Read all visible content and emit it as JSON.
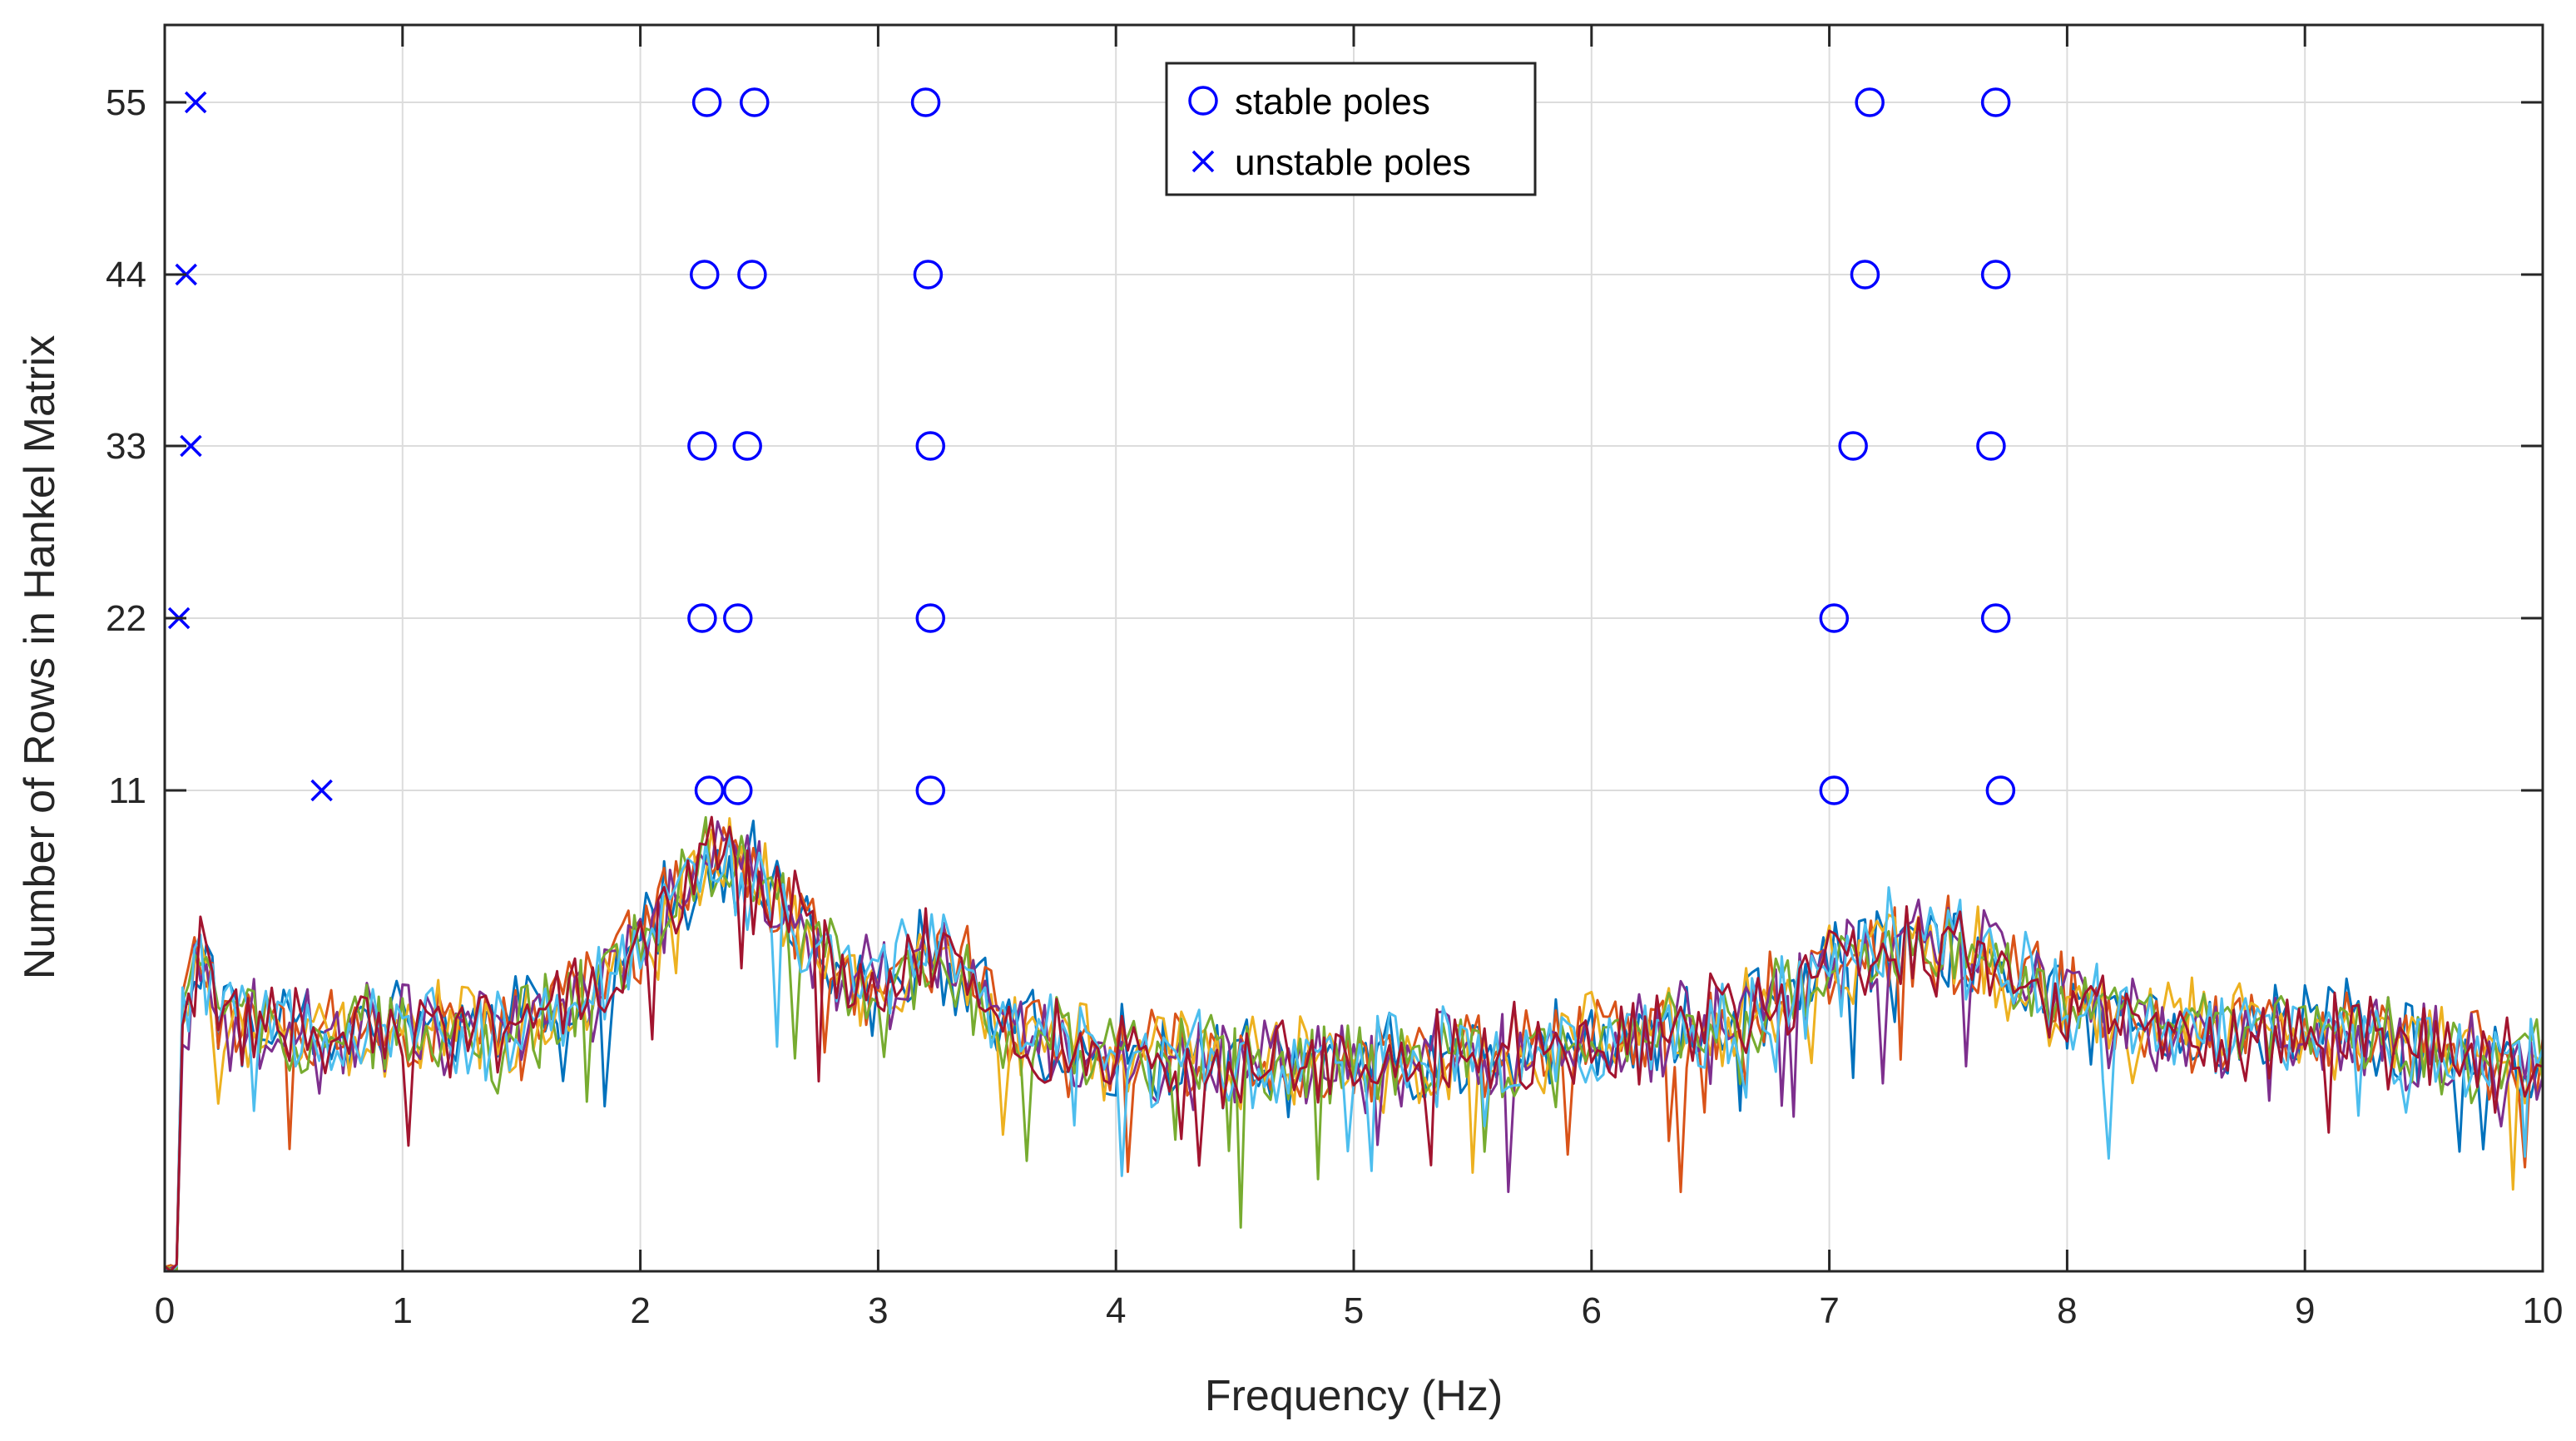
{
  "chart_data": {
    "type": "scatter",
    "title": "",
    "xlabel": "Frequency (Hz)",
    "ylabel": "Number of Rows in Hankel Matrix",
    "xlim": [
      0,
      10
    ],
    "xticks": [
      0,
      1,
      2,
      3,
      4,
      5,
      6,
      7,
      8,
      9,
      10
    ],
    "y_tick_rows": [
      11,
      22,
      33,
      44,
      55
    ],
    "grid": true,
    "legend_position": "top-center",
    "legend": [
      {
        "label": "stable poles",
        "marker": "circle"
      },
      {
        "label": "unstable poles",
        "marker": "x"
      }
    ],
    "marker_color": "#0000ff",
    "stable_poles": [
      {
        "rows": 55,
        "freqs": [
          2.28,
          2.48,
          3.2,
          7.17,
          7.7
        ]
      },
      {
        "rows": 44,
        "freqs": [
          2.27,
          2.47,
          3.21,
          7.15,
          7.7
        ]
      },
      {
        "rows": 33,
        "freqs": [
          2.26,
          2.45,
          3.22,
          7.1,
          7.68
        ]
      },
      {
        "rows": 22,
        "freqs": [
          2.26,
          2.41,
          3.22,
          7.02,
          7.7
        ]
      },
      {
        "rows": 11,
        "freqs": [
          2.29,
          2.41,
          3.22,
          7.02,
          7.72
        ]
      }
    ],
    "unstable_poles": [
      {
        "rows": 55,
        "freqs": [
          0.13
        ]
      },
      {
        "rows": 44,
        "freqs": [
          0.09
        ]
      },
      {
        "rows": 33,
        "freqs": [
          0.11
        ]
      },
      {
        "rows": 22,
        "freqs": [
          0.06
        ]
      },
      {
        "rows": 11,
        "freqs": [
          0.66
        ]
      }
    ],
    "spectra_note": "overlaid frequency-response magnitude curves (arbitrary units, no y scale)",
    "spectra": [
      {
        "color": "#0072bd",
        "seed": 11
      },
      {
        "color": "#d95319",
        "seed": 23
      },
      {
        "color": "#edb120",
        "seed": 37
      },
      {
        "color": "#7e2f8e",
        "seed": 41
      },
      {
        "color": "#77ac30",
        "seed": 53
      },
      {
        "color": "#4dbeee",
        "seed": 67
      },
      {
        "color": "#a2142f",
        "seed": 79
      }
    ]
  }
}
